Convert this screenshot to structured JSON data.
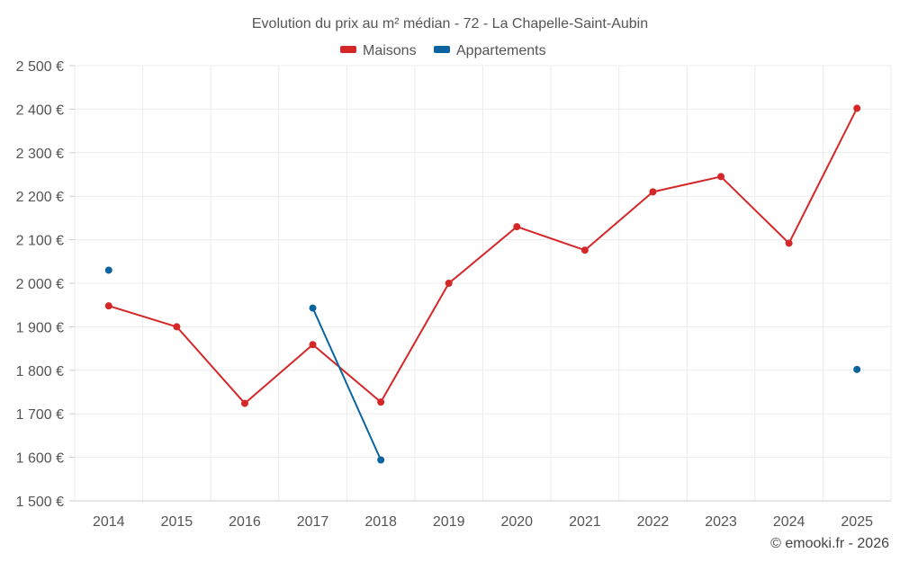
{
  "chart_data": {
    "type": "line",
    "title": "Evolution du prix au m² médian - 72 - La Chapelle-Saint-Aubin",
    "categories": [
      "2014",
      "2015",
      "2016",
      "2017",
      "2018",
      "2019",
      "2020",
      "2021",
      "2022",
      "2023",
      "2024",
      "2025"
    ],
    "ylim": [
      1500,
      2500
    ],
    "yticks": [
      1500,
      1600,
      1700,
      1800,
      1900,
      2000,
      2100,
      2200,
      2300,
      2400,
      2500
    ],
    "ytick_labels": [
      "1 500 €",
      "1 600 €",
      "1 700 €",
      "1 800 €",
      "1 900 €",
      "2 000 €",
      "2 100 €",
      "2 200 €",
      "2 300 €",
      "2 400 €",
      "2 500 €"
    ],
    "grid": true,
    "legend_position": "top-center",
    "series": [
      {
        "name": "Maisons",
        "color": "#d62728",
        "values": [
          1948,
          1900,
          1724,
          1859,
          1727,
          2000,
          2130,
          2076,
          2210,
          2245,
          2092,
          2402
        ]
      },
      {
        "name": "Appartements",
        "color": "#0b64a0",
        "values": [
          2030,
          null,
          null,
          1943,
          1594,
          null,
          null,
          null,
          null,
          null,
          null,
          1802
        ]
      }
    ]
  },
  "credit": "© emooki.fr - 2026"
}
